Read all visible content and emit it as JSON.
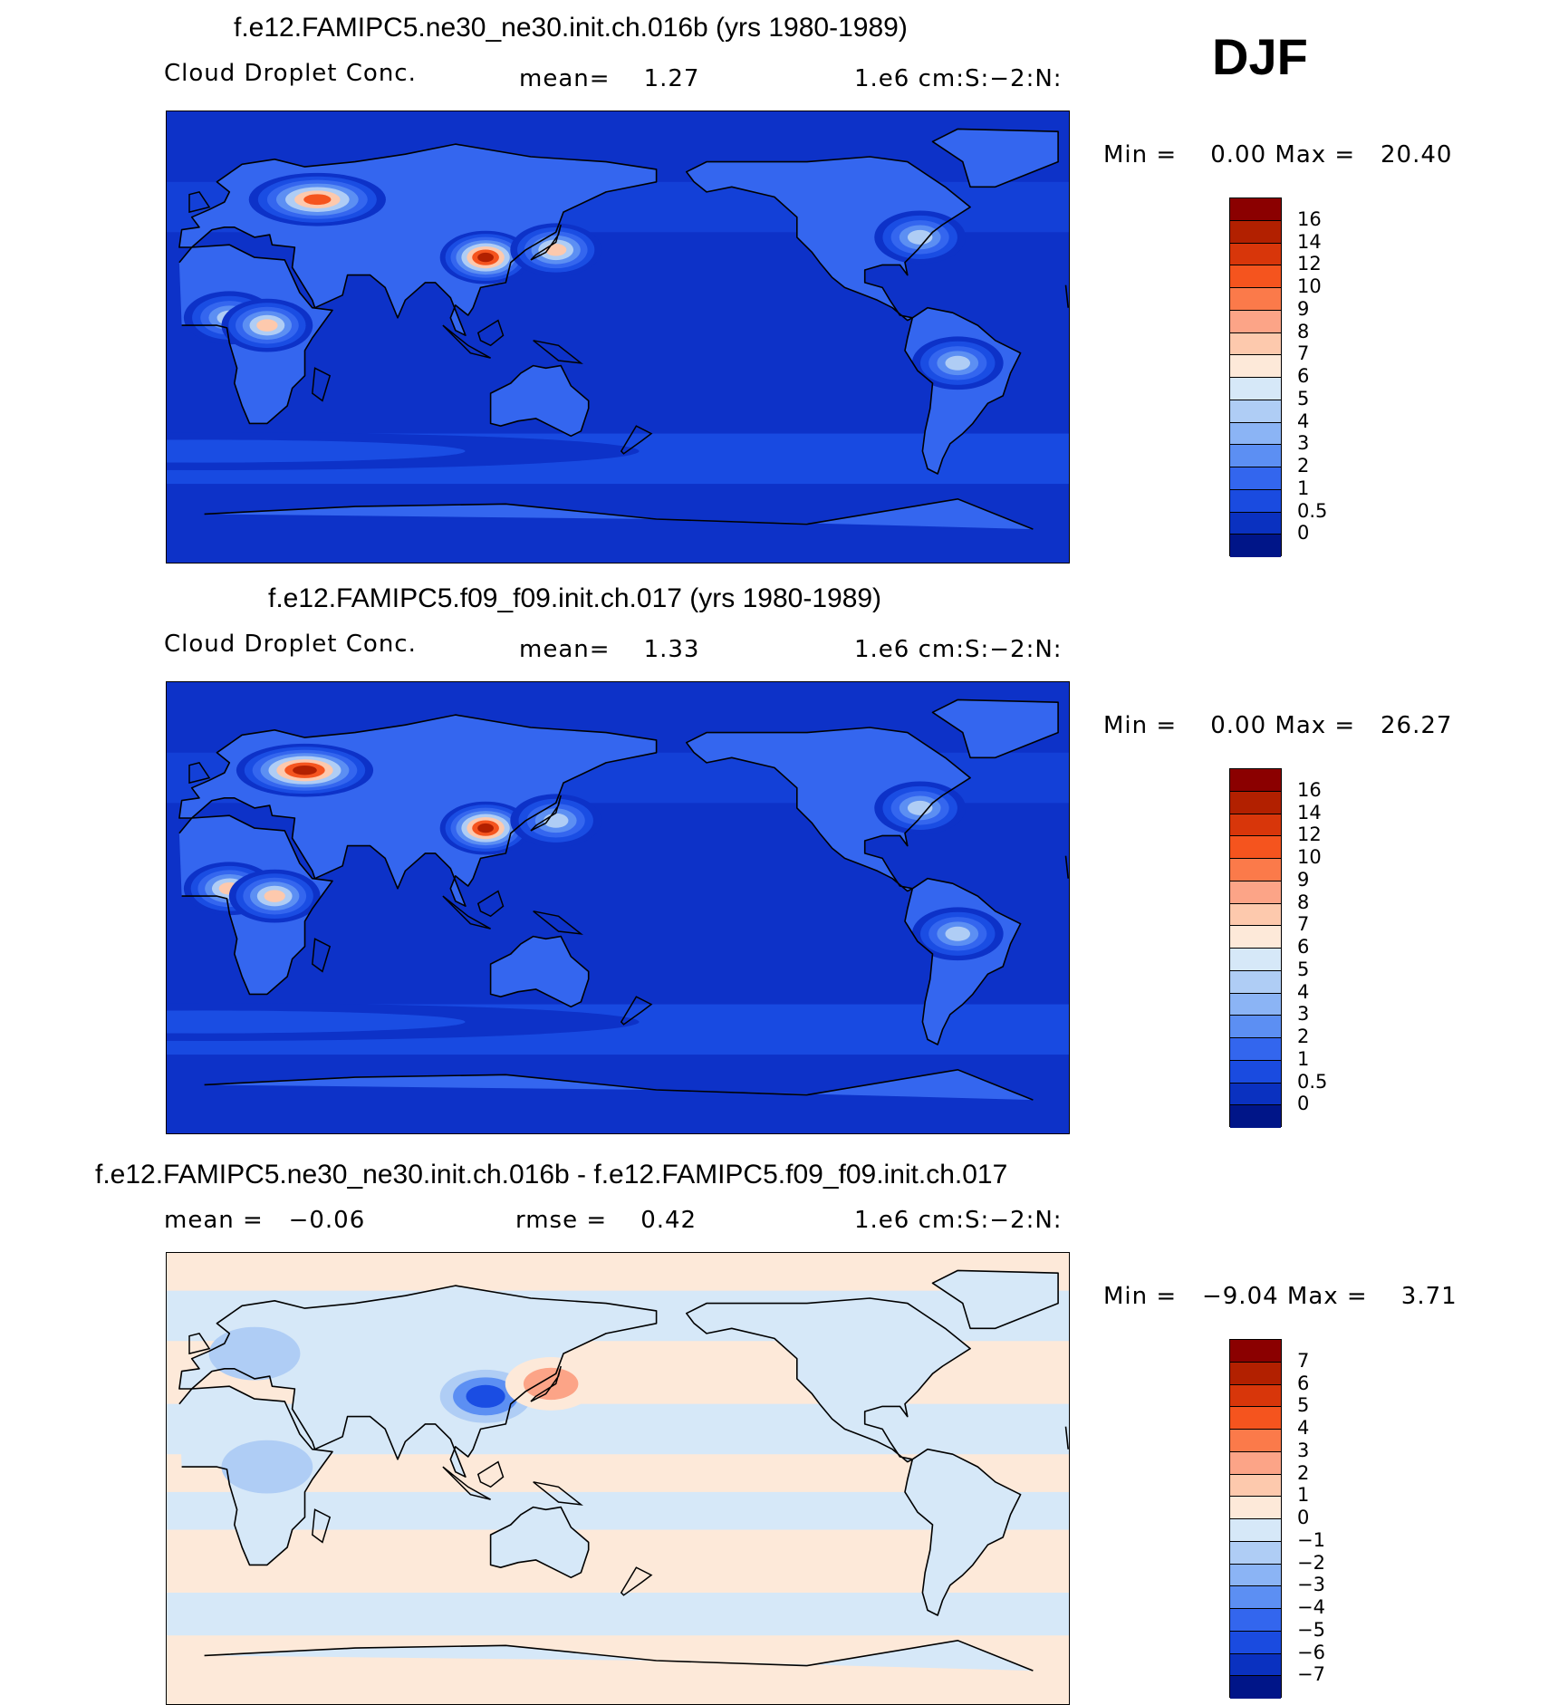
{
  "season": "DJF",
  "panels": [
    {
      "title": "f.e12.FAMIPC5.ne30_ne30.init.ch.016b (yrs 1980-1989)",
      "left_label": "Cloud Droplet Conc.",
      "center_label": "mean=    1.27",
      "right_label": "1.e6 cm:S:−2:N:",
      "minmax": "Min =    0.00 Max =   20.40",
      "colorbar_labels": [
        "16",
        "14",
        "12",
        "10",
        "9",
        "8",
        "7",
        "6",
        "5",
        "4",
        "3",
        "2",
        "1",
        "0.5",
        "0"
      ],
      "colorbar_colors": [
        "#8b0000",
        "#b22000",
        "#d8360a",
        "#f5541e",
        "#fb7a4a",
        "#fca487",
        "#fdc9ad",
        "#fde9d9",
        "#d6e8f8",
        "#afcdf5",
        "#8bb4f5",
        "#5c8ff3",
        "#3366ee",
        "#1a4be0",
        "#0a31c0",
        "#001588"
      ],
      "field_colors": [
        "#0d32c8",
        "#1a4de3",
        "#3466ef",
        "#5c8ff3",
        "#afcdf5",
        "#fdc9ad",
        "#f5541e",
        "#b22000"
      ],
      "field_levels": [
        0.5,
        1,
        2,
        3,
        4,
        7,
        10,
        14
      ],
      "hotspots": [
        {
          "name": "Europe/Russia",
          "lon": 45,
          "lat": 55,
          "value": 13
        },
        {
          "name": "China",
          "lon": 112,
          "lat": 32,
          "value": 17
        },
        {
          "name": "Japan outflow",
          "lon": 140,
          "lat": 35,
          "value": 7
        },
        {
          "name": "West Africa",
          "lon": 10,
          "lat": 8,
          "value": 6
        },
        {
          "name": "Central Africa",
          "lon": 25,
          "lat": 5,
          "value": 8
        },
        {
          "name": "Eastern US",
          "lon": -75,
          "lat": 40,
          "value": 4
        },
        {
          "name": "South America",
          "lon": -60,
          "lat": -10,
          "value": 4
        },
        {
          "name": "Southern Ocean",
          "lon": 0,
          "lat": -45,
          "value": 1.5
        }
      ]
    },
    {
      "title": "f.e12.FAMIPC5.f09_f09.init.ch.017 (yrs 1980-1989)",
      "left_label": "Cloud Droplet Conc.",
      "center_label": "mean=    1.33",
      "right_label": "1.e6 cm:S:−2:N:",
      "minmax": "Min =    0.00 Max =   26.27",
      "colorbar_labels": [
        "16",
        "14",
        "12",
        "10",
        "9",
        "8",
        "7",
        "6",
        "5",
        "4",
        "3",
        "2",
        "1",
        "0.5",
        "0"
      ],
      "colorbar_colors": [
        "#8b0000",
        "#b22000",
        "#d8360a",
        "#f5541e",
        "#fb7a4a",
        "#fca487",
        "#fdc9ad",
        "#fde9d9",
        "#d6e8f8",
        "#afcdf5",
        "#8bb4f5",
        "#5c8ff3",
        "#3366ee",
        "#1a4be0",
        "#0a31c0",
        "#001588"
      ],
      "field_colors": [
        "#0d32c8",
        "#1a4de3",
        "#3466ef",
        "#5c8ff3",
        "#afcdf5",
        "#fdc9ad",
        "#f5541e",
        "#b22000"
      ],
      "field_levels": [
        0.5,
        1,
        2,
        3,
        4,
        7,
        10,
        14
      ],
      "hotspots": [
        {
          "name": "Europe/Russia",
          "lon": 40,
          "lat": 55,
          "value": 14
        },
        {
          "name": "China",
          "lon": 112,
          "lat": 32,
          "value": 18
        },
        {
          "name": "Japan outflow",
          "lon": 140,
          "lat": 35,
          "value": 6
        },
        {
          "name": "West Africa",
          "lon": 10,
          "lat": 8,
          "value": 9
        },
        {
          "name": "Central Africa",
          "lon": 28,
          "lat": 5,
          "value": 9
        },
        {
          "name": "Eastern US",
          "lon": -75,
          "lat": 40,
          "value": 4
        },
        {
          "name": "South America",
          "lon": -60,
          "lat": -10,
          "value": 4
        },
        {
          "name": "Southern Ocean",
          "lon": 0,
          "lat": -45,
          "value": 1.5
        }
      ]
    },
    {
      "title": "f.e12.FAMIPC5.ne30_ne30.init.ch.016b - f.e12.FAMIPC5.f09_f09.init.ch.017",
      "left_label": "mean =   −0.06",
      "center_label": "rmse =    0.42",
      "right_label": "1.e6 cm:S:−2:N:",
      "minmax": "Min =   −9.04 Max =    3.71",
      "colorbar_labels": [
        "7",
        "6",
        "5",
        "4",
        "3",
        "2",
        "1",
        "0",
        "−1",
        "−2",
        "−3",
        "−4",
        "−5",
        "−6",
        "−7"
      ],
      "colorbar_colors": [
        "#8b0000",
        "#b22000",
        "#d8360a",
        "#f5541e",
        "#fb7a4a",
        "#fca487",
        "#fdc9ad",
        "#fde9d9",
        "#d6e8f8",
        "#afcdf5",
        "#8bb4f5",
        "#5c8ff3",
        "#3366ee",
        "#1a4be0",
        "#0a31c0",
        "#001588"
      ],
      "field_colors": [
        "#1a4de3",
        "#5c8ff3",
        "#afcdf5",
        "#d6e8f8",
        "#fde9d9",
        "#fca487",
        "#f5541e"
      ],
      "field_levels": [
        -5,
        -3,
        -1,
        0,
        1,
        2,
        4
      ],
      "hotspots": [
        {
          "name": "China",
          "lon": 112,
          "lat": 33,
          "value": -6
        },
        {
          "name": "Japan",
          "lon": 138,
          "lat": 38,
          "value": 2
        },
        {
          "name": "Central Africa",
          "lon": 25,
          "lat": 5,
          "value": -1.5
        },
        {
          "name": "Europe",
          "lon": 20,
          "lat": 50,
          "value": -1.2
        }
      ]
    }
  ]
}
